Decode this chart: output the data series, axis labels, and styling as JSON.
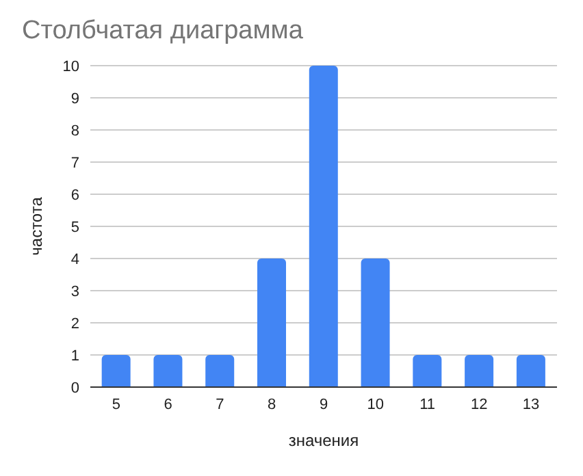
{
  "chart_data": {
    "type": "bar",
    "title": "Столбчатая диаграмма",
    "xlabel": "значения",
    "ylabel": "частота",
    "categories": [
      "5",
      "6",
      "7",
      "8",
      "9",
      "10",
      "11",
      "12",
      "13"
    ],
    "values": [
      1,
      1,
      1,
      4,
      10,
      4,
      1,
      1,
      1
    ],
    "color": "#4285f4",
    "ylim": [
      0,
      10
    ],
    "yticks": [
      0,
      1,
      2,
      3,
      4,
      5,
      6,
      7,
      8,
      9,
      10
    ],
    "grid": "y"
  }
}
